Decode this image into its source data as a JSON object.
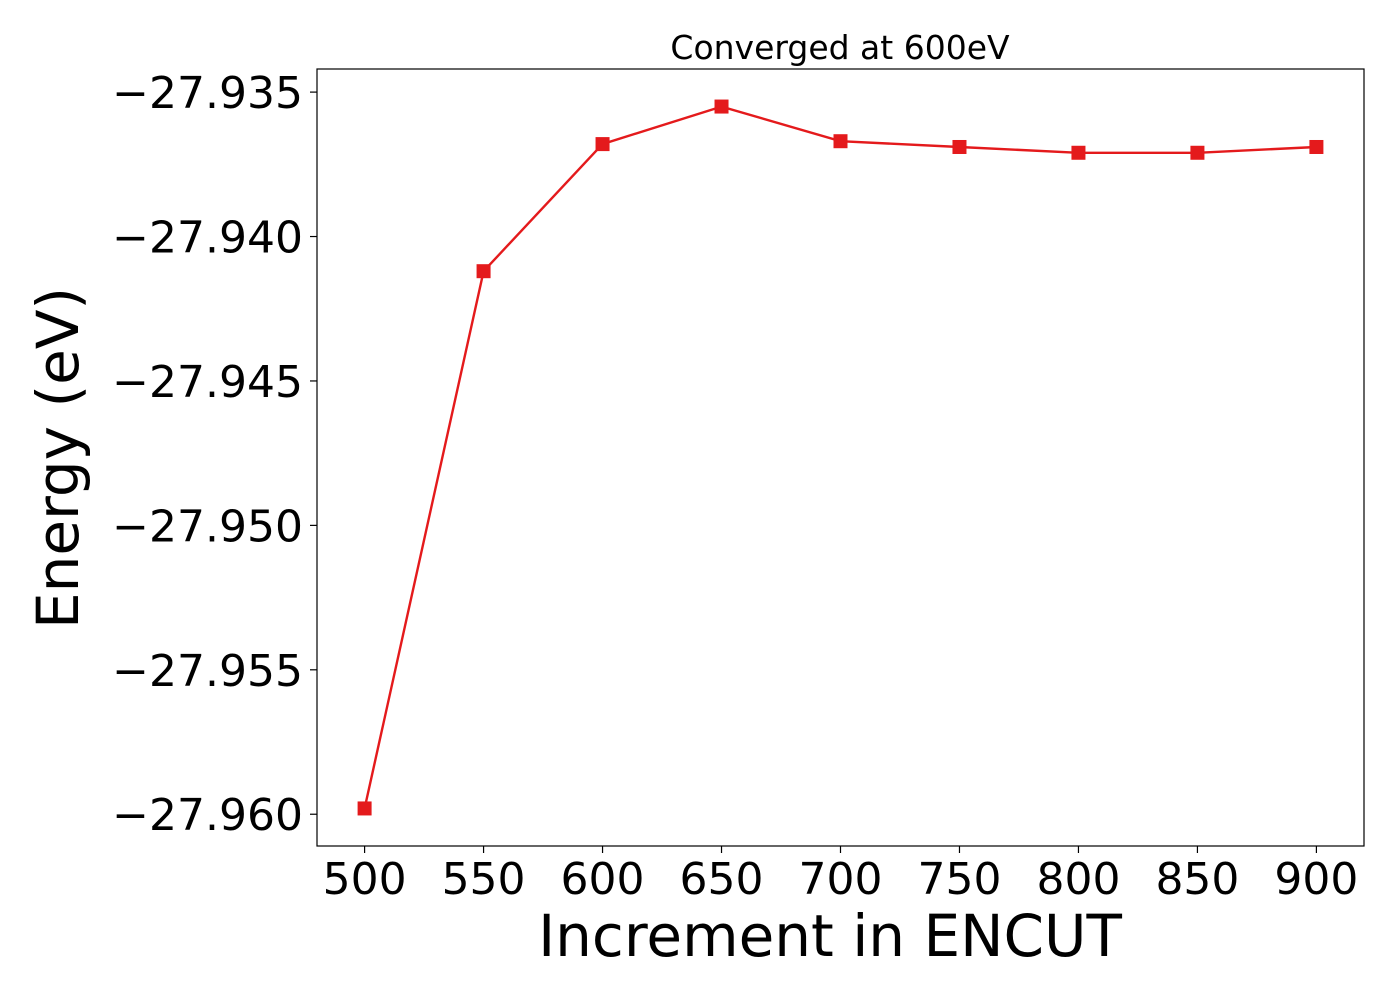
{
  "chart_data": {
    "type": "line",
    "title": "Converged at 600eV",
    "xlabel": "Increment in ENCUT",
    "ylabel": "Energy (eV)",
    "x": [
      500,
      550,
      600,
      650,
      700,
      750,
      800,
      850,
      900
    ],
    "series": [
      {
        "values": [
          -27.9598,
          -27.9412,
          -27.9368,
          -27.9355,
          -27.9367,
          -27.9369,
          -27.9371,
          -27.9371,
          -27.9369
        ],
        "color": "#e41a1c",
        "marker": "square"
      }
    ],
    "xticks": [
      500,
      550,
      600,
      650,
      700,
      750,
      800,
      850,
      900
    ],
    "xtick_labels": [
      "500",
      "550",
      "600",
      "650",
      "700",
      "750",
      "800",
      "850",
      "900"
    ],
    "yticks": [
      -27.935,
      -27.94,
      -27.945,
      -27.95,
      -27.955,
      -27.96
    ],
    "ytick_labels": [
      "−27.935",
      "−27.940",
      "−27.945",
      "−27.950",
      "−27.955",
      "−27.960"
    ],
    "xlim": [
      480,
      920
    ],
    "ylim": [
      -27.9611,
      -27.9342
    ],
    "grid": false,
    "legend": "none"
  }
}
